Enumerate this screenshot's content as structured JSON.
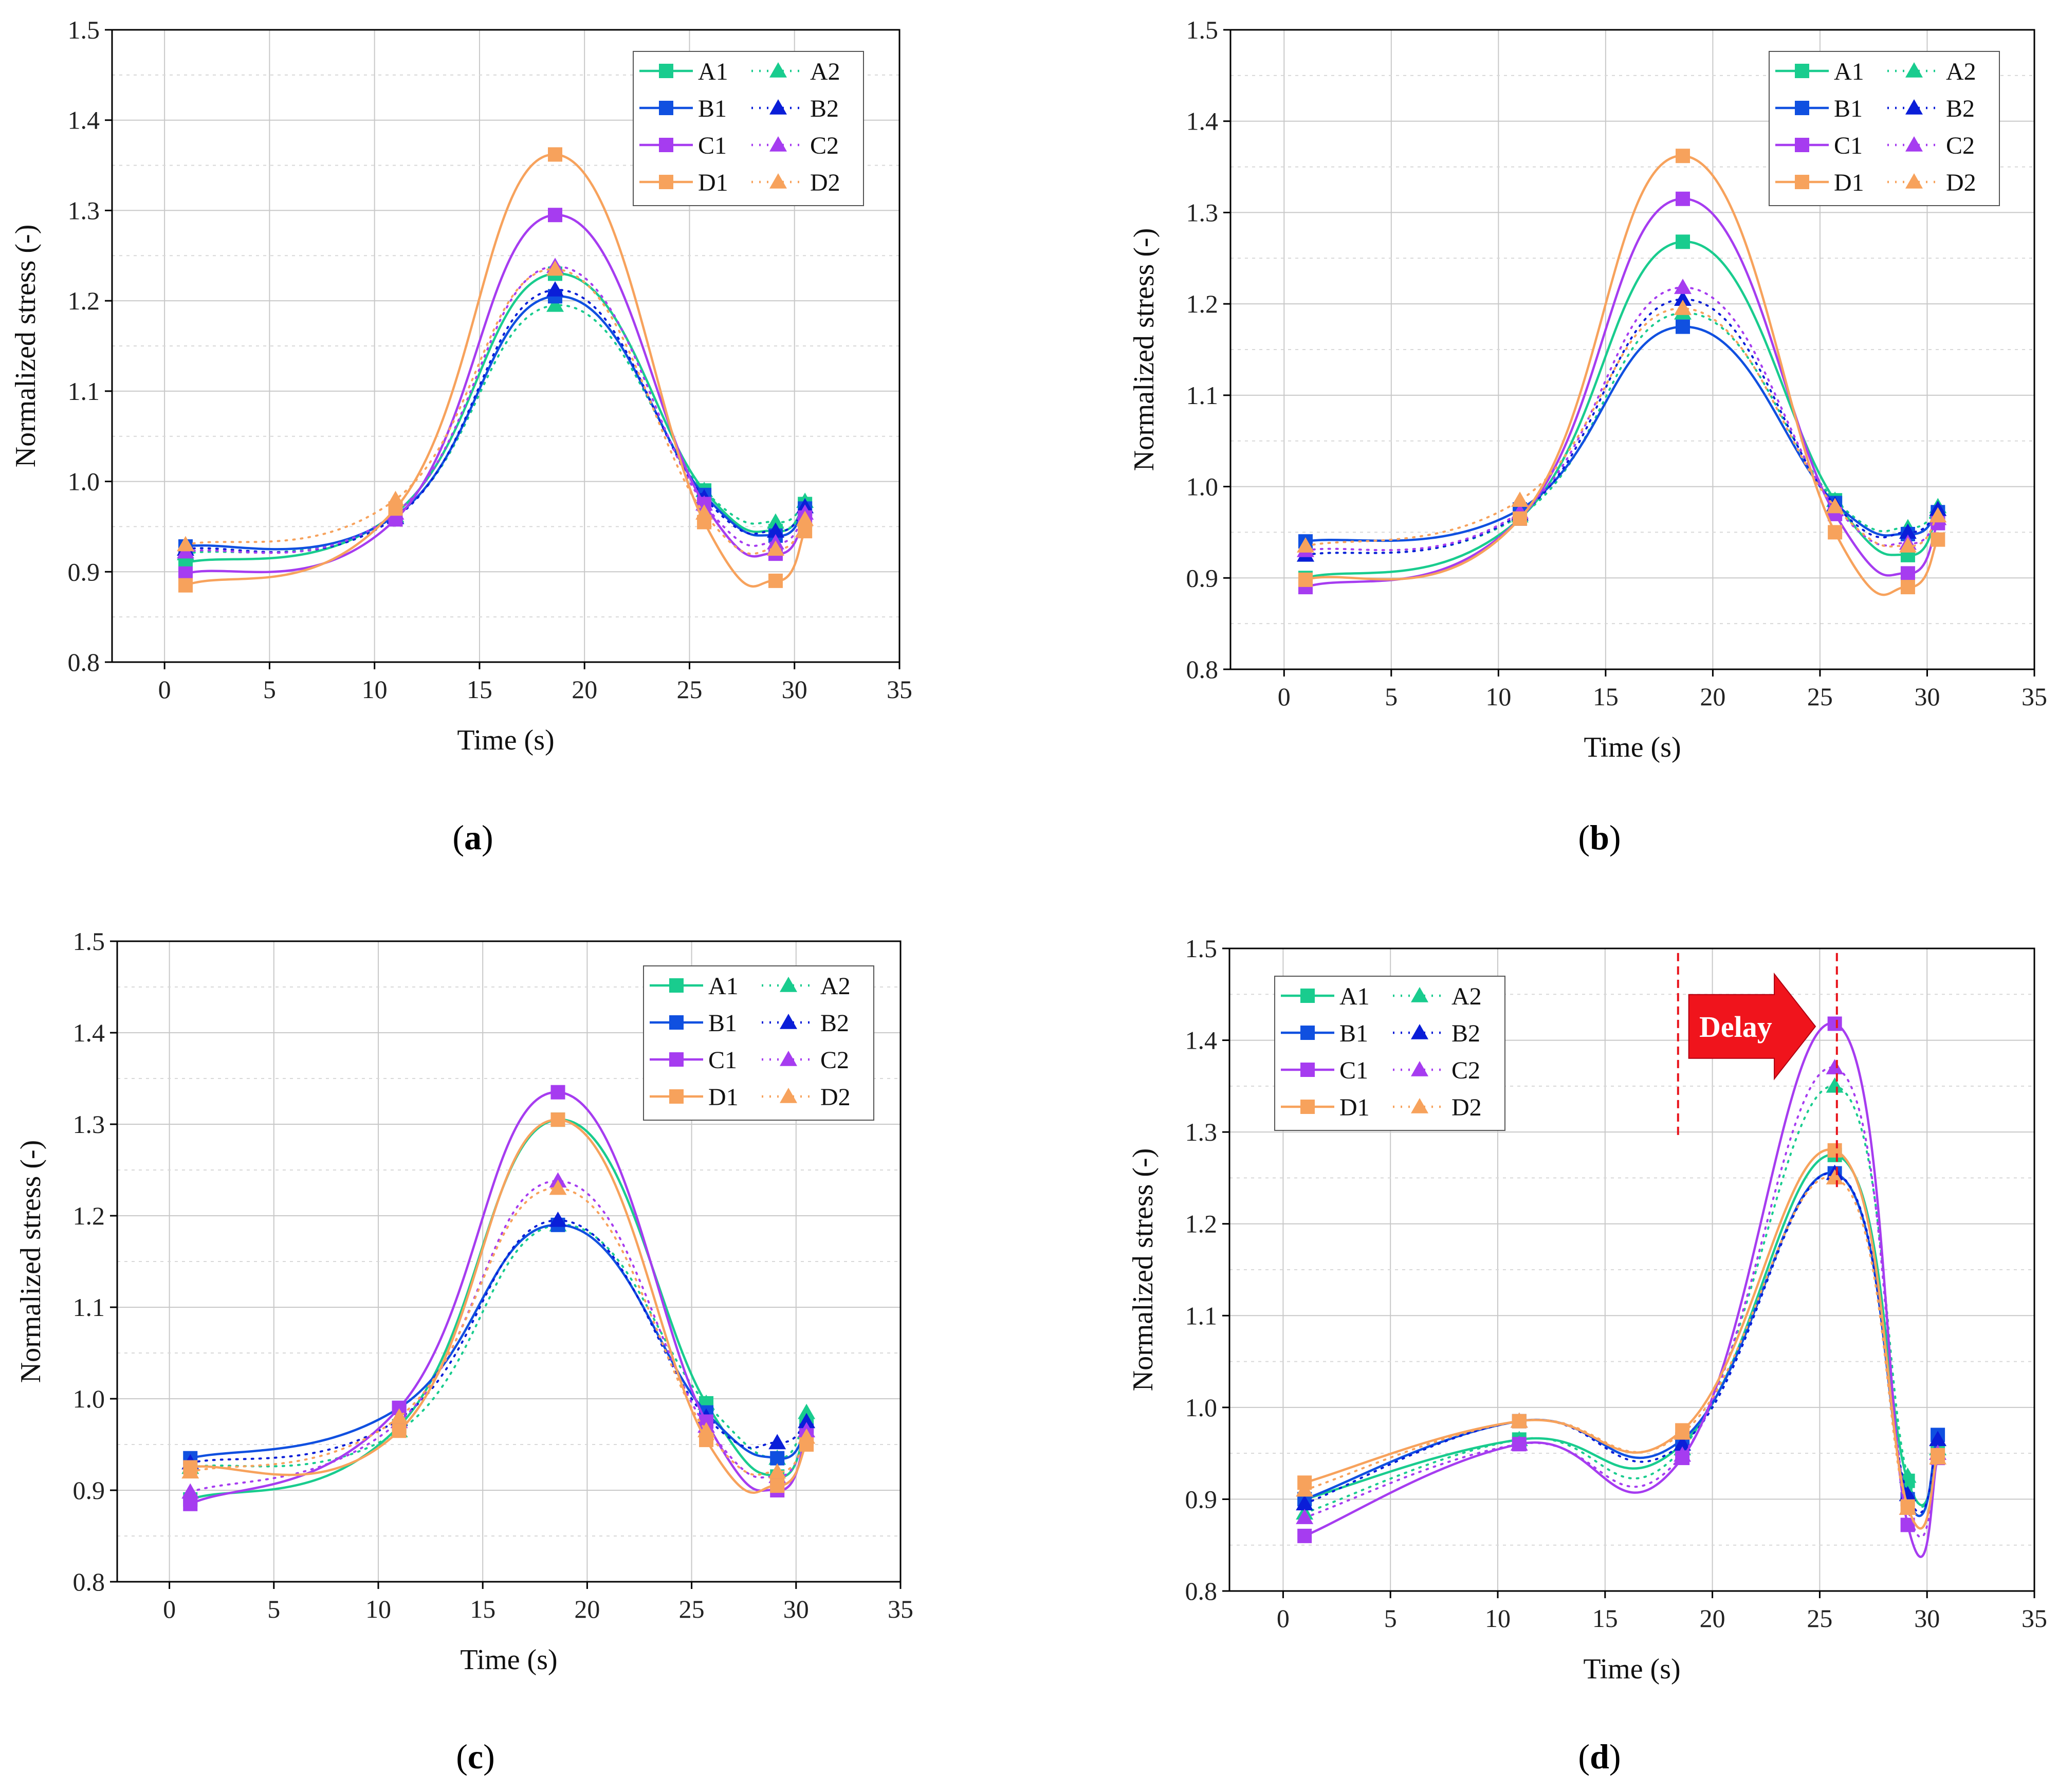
{
  "series_styles": [
    {
      "name": "A1",
      "color": "#19cc8e",
      "dash": "solid",
      "marker": "square"
    },
    {
      "name": "A2",
      "color": "#19cc8e",
      "dash": "dotted",
      "marker": "triangle"
    },
    {
      "name": "B1",
      "color": "#1050e0",
      "dash": "solid",
      "marker": "square"
    },
    {
      "name": "B2",
      "color": "#0a1ed8",
      "dash": "dotted",
      "marker": "triangle"
    },
    {
      "name": "C1",
      "color": "#a63cf0",
      "dash": "solid",
      "marker": "square"
    },
    {
      "name": "C2",
      "color": "#a63cf0",
      "dash": "dotted",
      "marker": "triangle"
    },
    {
      "name": "D1",
      "color": "#f7a25c",
      "dash": "solid",
      "marker": "square"
    },
    {
      "name": "D2",
      "color": "#f7a25c",
      "dash": "dotted",
      "marker": "triangle"
    }
  ],
  "chart_data": [
    {
      "panel": "a",
      "type": "line",
      "xlabel": "Time (s)",
      "ylabel": "Normalized stress (-)",
      "xlim": [
        -2.5,
        35
      ],
      "ylim": [
        0.8,
        1.5
      ],
      "xticks": [
        0,
        5,
        10,
        15,
        20,
        25,
        30,
        35
      ],
      "yticks": [
        0.8,
        0.9,
        1.0,
        1.1,
        1.2,
        1.3,
        1.4,
        1.5
      ],
      "ytick_labels": [
        "0.8",
        "0.9",
        "1.0",
        "1.1",
        "1.2",
        "1.3",
        "1.4",
        "1.5"
      ],
      "grid": true,
      "legend_position": "top-right",
      "x": [
        1,
        11,
        18.6,
        25.7,
        29.1,
        30.5
      ],
      "series": [
        {
          "name": "A1",
          "values": [
            0.91,
            0.965,
            1.23,
            0.99,
            0.945,
            0.975
          ]
        },
        {
          "name": "A2",
          "values": [
            0.92,
            0.962,
            1.195,
            0.99,
            0.955,
            0.978
          ]
        },
        {
          "name": "B1",
          "values": [
            0.928,
            0.962,
            1.205,
            0.985,
            0.94,
            0.97
          ]
        },
        {
          "name": "B2",
          "values": [
            0.925,
            0.96,
            1.212,
            0.982,
            0.945,
            0.972
          ]
        },
        {
          "name": "C1",
          "values": [
            0.898,
            0.958,
            1.295,
            0.975,
            0.92,
            0.96
          ]
        },
        {
          "name": "C2",
          "values": [
            0.922,
            0.965,
            1.238,
            0.975,
            0.932,
            0.965
          ]
        },
        {
          "name": "D1",
          "values": [
            0.885,
            0.97,
            1.362,
            0.955,
            0.89,
            0.945
          ]
        },
        {
          "name": "D2",
          "values": [
            0.93,
            0.98,
            1.235,
            0.965,
            0.925,
            0.958
          ]
        }
      ]
    },
    {
      "panel": "b",
      "type": "line",
      "xlabel": "Time (s)",
      "ylabel": "Normalized stress (-)",
      "xlim": [
        -2.5,
        35
      ],
      "ylim": [
        0.8,
        1.5
      ],
      "xticks": [
        0,
        5,
        10,
        15,
        20,
        25,
        30,
        35
      ],
      "yticks": [
        0.8,
        0.9,
        1.0,
        1.1,
        1.2,
        1.3,
        1.4,
        1.5
      ],
      "ytick_labels": [
        "0.8",
        "0.9",
        "1.0",
        "1.1",
        "1.2",
        "1.3",
        "1.4",
        "1.5"
      ],
      "grid": true,
      "legend_position": "top-right",
      "x": [
        1,
        11,
        18.6,
        25.7,
        29.1,
        30.5
      ],
      "series": [
        {
          "name": "A1",
          "values": [
            0.9,
            0.965,
            1.268,
            0.985,
            0.925,
            0.97
          ]
        },
        {
          "name": "A2",
          "values": [
            0.925,
            0.968,
            1.19,
            0.985,
            0.955,
            0.978
          ]
        },
        {
          "name": "B1",
          "values": [
            0.94,
            0.975,
            1.175,
            0.982,
            0.948,
            0.972
          ]
        },
        {
          "name": "B2",
          "values": [
            0.925,
            0.97,
            1.205,
            0.98,
            0.95,
            0.975
          ]
        },
        {
          "name": "C1",
          "values": [
            0.89,
            0.965,
            1.315,
            0.97,
            0.905,
            0.96
          ]
        },
        {
          "name": "C2",
          "values": [
            0.93,
            0.972,
            1.218,
            0.978,
            0.938,
            0.965
          ]
        },
        {
          "name": "D1",
          "values": [
            0.898,
            0.965,
            1.362,
            0.95,
            0.89,
            0.942
          ]
        },
        {
          "name": "D2",
          "values": [
            0.935,
            0.985,
            1.195,
            0.978,
            0.935,
            0.968
          ]
        }
      ]
    },
    {
      "panel": "c",
      "type": "line",
      "xlabel": "Time (s)",
      "ylabel": "Normalized stress (-)",
      "xlim": [
        -2.5,
        35
      ],
      "ylim": [
        0.8,
        1.5
      ],
      "xticks": [
        0,
        5,
        10,
        15,
        20,
        25,
        30,
        35
      ],
      "yticks": [
        0.8,
        0.9,
        1.0,
        1.1,
        1.2,
        1.3,
        1.4,
        1.5
      ],
      "ytick_labels": [
        "0.8",
        "0.9",
        "1.0",
        "1.1",
        "1.2",
        "1.3",
        "1.4",
        "1.5"
      ],
      "grid": true,
      "legend_position": "top-right",
      "x": [
        1,
        11,
        18.6,
        25.7,
        29.1,
        30.5
      ],
      "series": [
        {
          "name": "A1",
          "values": [
            0.89,
            0.97,
            1.305,
            0.995,
            0.915,
            0.97
          ]
        },
        {
          "name": "A2",
          "values": [
            0.925,
            0.965,
            1.19,
            0.995,
            0.935,
            0.985
          ]
        },
        {
          "name": "B1",
          "values": [
            0.935,
            0.99,
            1.19,
            0.985,
            0.935,
            0.965
          ]
        },
        {
          "name": "B2",
          "values": [
            0.93,
            0.978,
            1.195,
            0.98,
            0.952,
            0.975
          ]
        },
        {
          "name": "C1",
          "values": [
            0.885,
            0.99,
            1.335,
            0.975,
            0.9,
            0.96
          ]
        },
        {
          "name": "C2",
          "values": [
            0.898,
            0.975,
            1.238,
            0.97,
            0.915,
            0.965
          ]
        },
        {
          "name": "D1",
          "values": [
            0.925,
            0.965,
            1.305,
            0.955,
            0.905,
            0.95
          ]
        },
        {
          "name": "D2",
          "values": [
            0.92,
            0.98,
            1.23,
            0.965,
            0.92,
            0.958
          ]
        }
      ]
    },
    {
      "panel": "d",
      "type": "line",
      "xlabel": "Time (s)",
      "ylabel": "Normalized stress (-)",
      "xlim": [
        -2.5,
        35
      ],
      "ylim": [
        0.8,
        1.5
      ],
      "xticks": [
        0,
        5,
        10,
        15,
        20,
        25,
        30,
        35
      ],
      "yticks": [
        0.8,
        0.9,
        1.0,
        1.1,
        1.2,
        1.3,
        1.4,
        1.5
      ],
      "ytick_labels": [
        "0.8",
        "0.9",
        "1.0",
        "1.1",
        "1.2",
        "1.3",
        "1.4",
        "1.5"
      ],
      "grid": true,
      "legend_position": "top-left",
      "x": [
        1,
        11,
        18.6,
        25.7,
        29.1,
        30.5
      ],
      "series": [
        {
          "name": "A1",
          "values": [
            0.9,
            0.965,
            0.96,
            1.275,
            0.92,
            0.95
          ]
        },
        {
          "name": "A2",
          "values": [
            0.885,
            0.965,
            0.955,
            1.35,
            0.925,
            0.955
          ]
        },
        {
          "name": "B1",
          "values": [
            0.9,
            0.985,
            0.965,
            1.255,
            0.9,
            0.97
          ]
        },
        {
          "name": "B2",
          "values": [
            0.895,
            0.985,
            0.96,
            1.255,
            0.905,
            0.965
          ]
        },
        {
          "name": "C1",
          "values": [
            0.86,
            0.96,
            0.945,
            1.418,
            0.872,
            0.945
          ]
        },
        {
          "name": "C2",
          "values": [
            0.88,
            0.96,
            0.948,
            1.37,
            0.89,
            0.95
          ]
        },
        {
          "name": "D1",
          "values": [
            0.918,
            0.985,
            0.975,
            1.28,
            0.892,
            0.948
          ]
        },
        {
          "name": "D2",
          "values": [
            0.91,
            0.985,
            0.972,
            1.25,
            0.89,
            0.945
          ]
        }
      ],
      "annotations": {
        "delay_text": "Delay",
        "vlines_x": [
          18.4,
          25.8
        ]
      }
    }
  ],
  "panel_labels": [
    {
      "open": "(",
      "letter": "a",
      "close": ")"
    },
    {
      "open": "(",
      "letter": "b",
      "close": ")"
    },
    {
      "open": "(",
      "letter": "c",
      "close": ")"
    },
    {
      "open": "(",
      "letter": "d",
      "close": ")"
    }
  ]
}
